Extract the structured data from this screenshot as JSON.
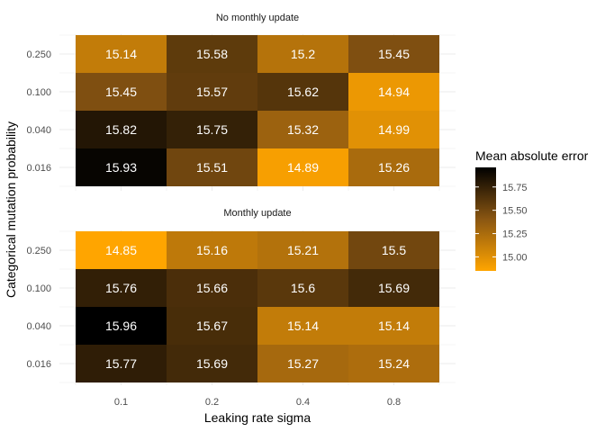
{
  "chart_data": {
    "type": "heatmap",
    "xlabel": "Leaking rate sigma",
    "ylabel": "Categorical mutation probability",
    "x": [
      "0.1",
      "0.2",
      "0.4",
      "0.8"
    ],
    "y": [
      "0.250",
      "0.100",
      "0.040",
      "0.016"
    ],
    "facets": [
      {
        "title": "No monthly update",
        "values": [
          [
            15.14,
            15.58,
            15.2,
            15.45
          ],
          [
            15.45,
            15.57,
            15.62,
            14.94
          ],
          [
            15.82,
            15.75,
            15.32,
            14.99
          ],
          [
            15.93,
            15.51,
            14.89,
            15.26
          ]
        ]
      },
      {
        "title": "Monthly update",
        "values": [
          [
            14.85,
            15.16,
            15.21,
            15.5
          ],
          [
            15.76,
            15.66,
            15.6,
            15.69
          ],
          [
            15.96,
            15.67,
            15.14,
            15.14
          ],
          [
            15.77,
            15.69,
            15.27,
            15.24
          ]
        ]
      }
    ],
    "legend": {
      "title": "Mean absolute error",
      "ticks": [
        15.75,
        15.5,
        15.25,
        15.0
      ],
      "tick_labels": [
        "15.75",
        "15.50",
        "15.25",
        "15.00"
      ],
      "range": [
        14.85,
        15.96
      ],
      "low_color": "#FFA500",
      "high_color": "#000000",
      "placement": "right"
    },
    "grid": true
  }
}
